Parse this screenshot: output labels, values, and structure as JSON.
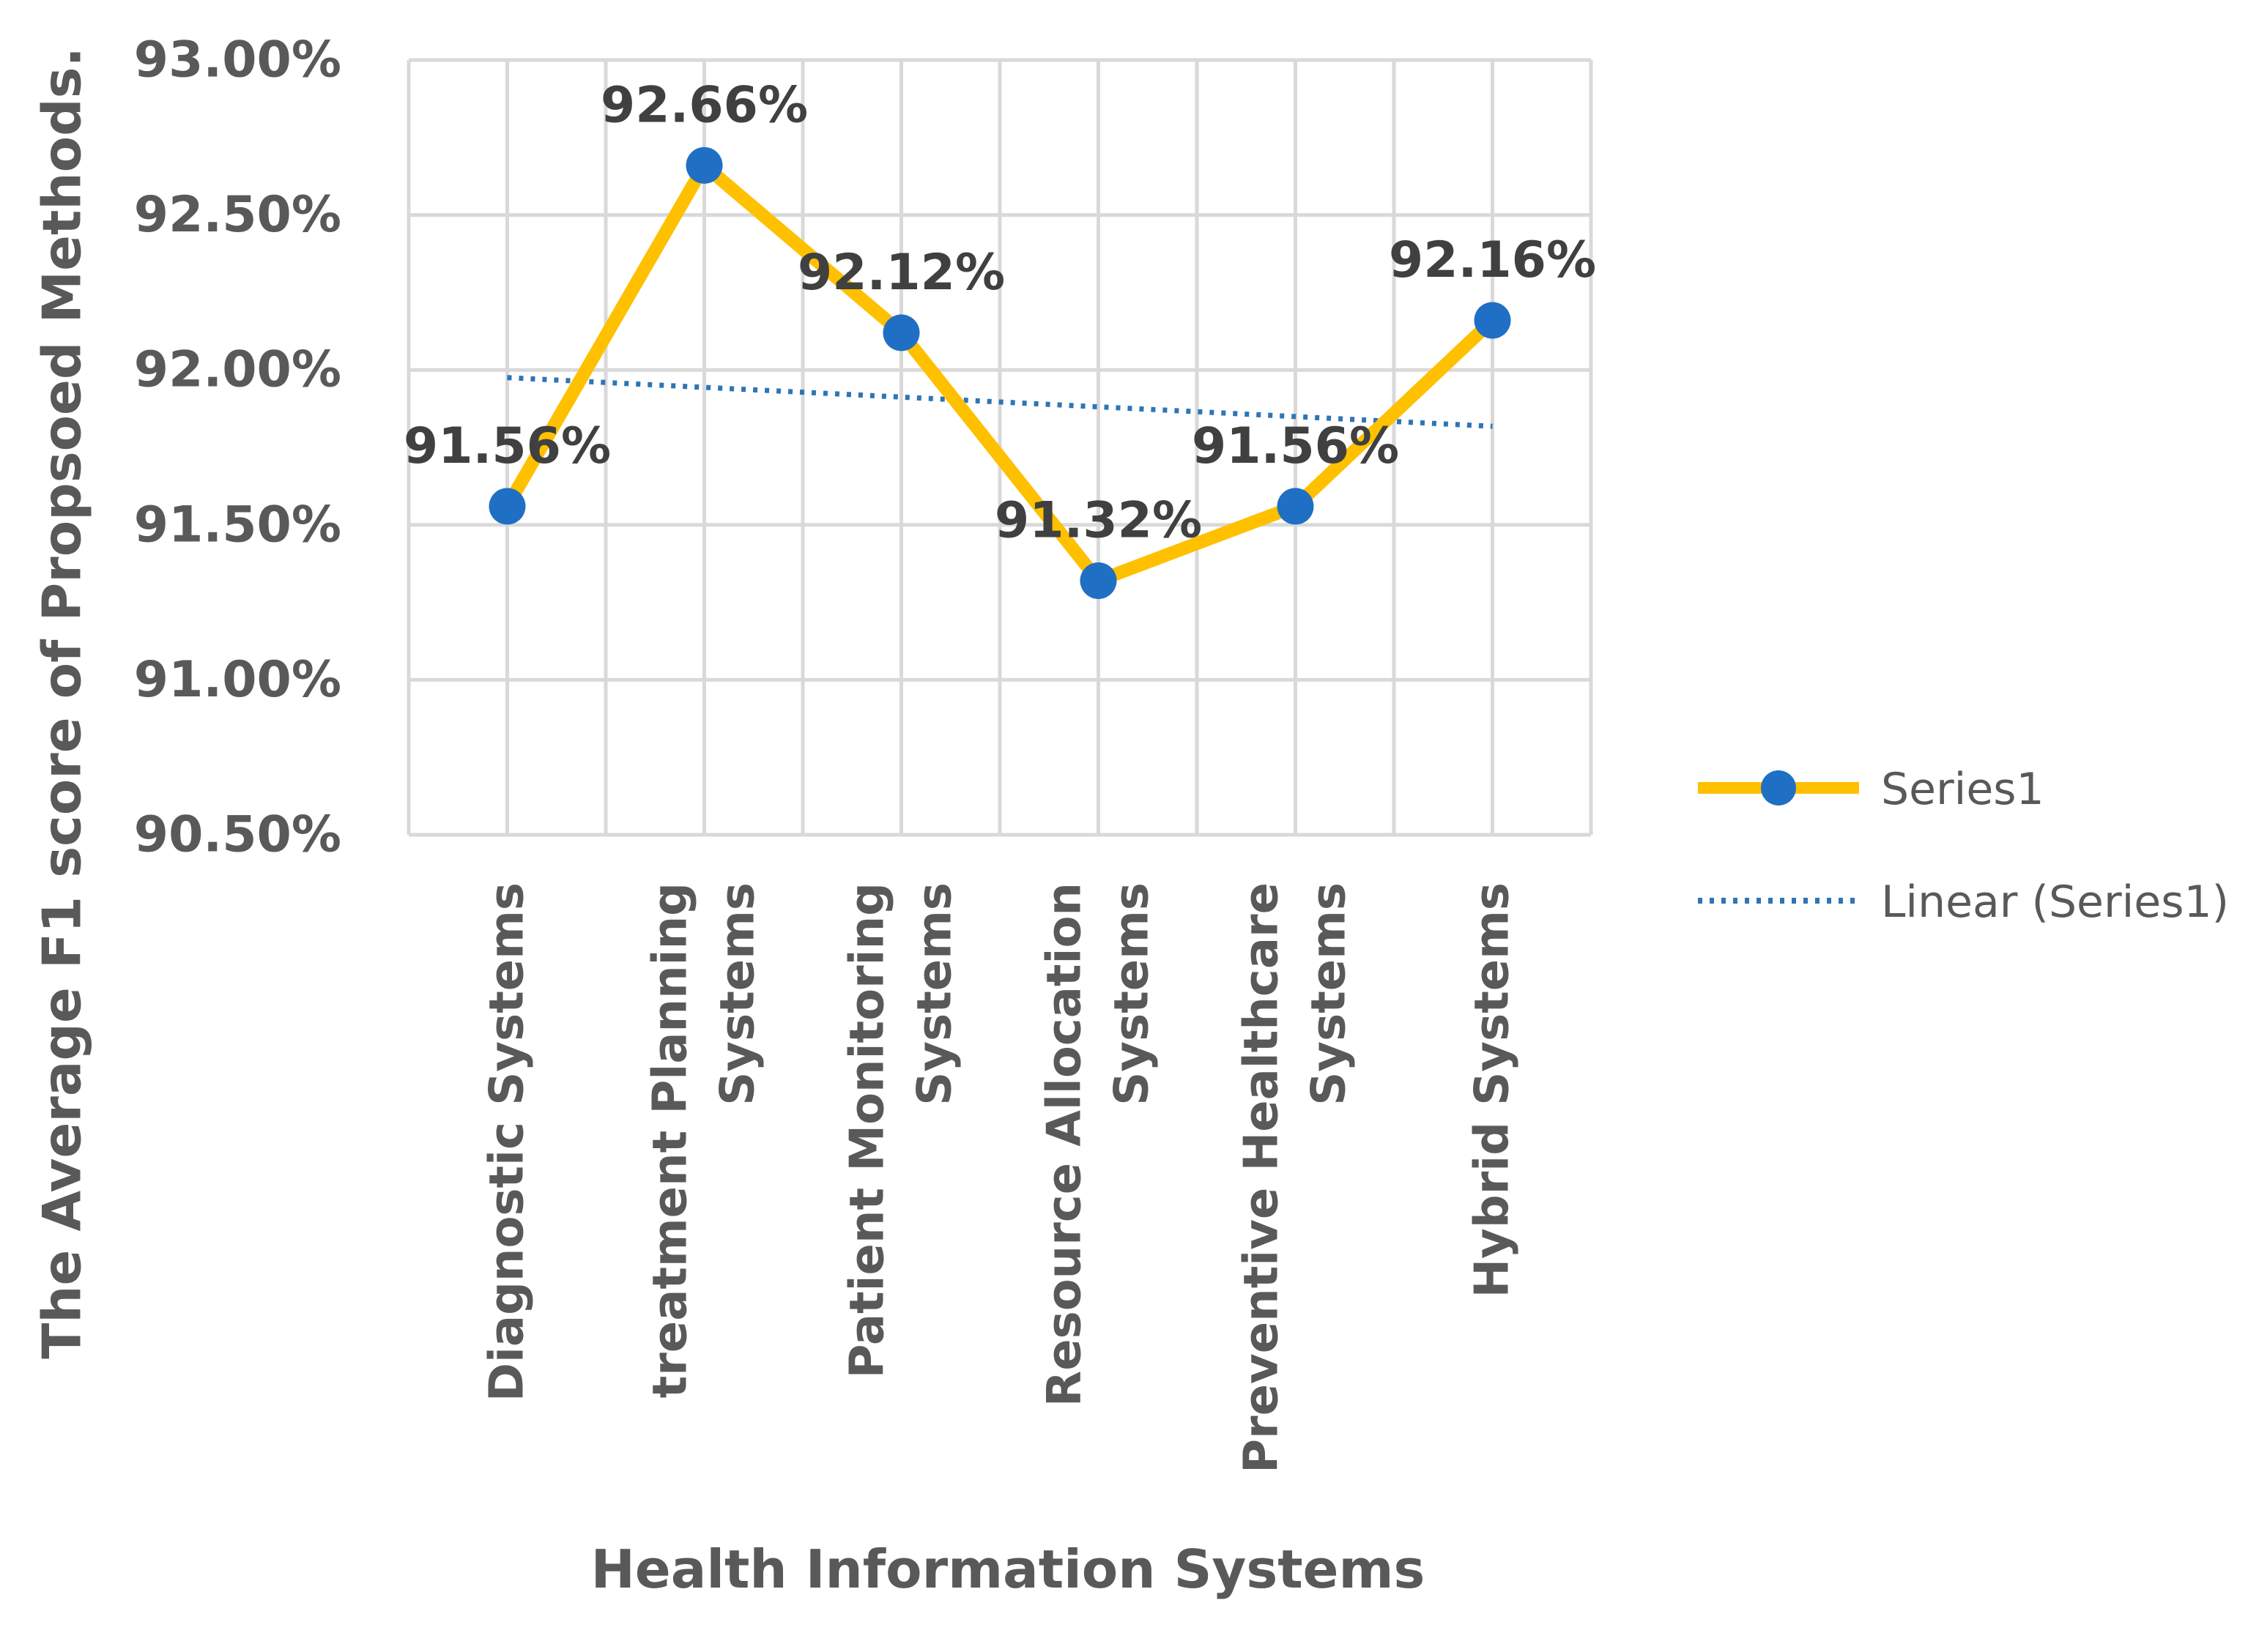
{
  "chart_data": {
    "type": "line",
    "title": "",
    "xlabel": "Health Information Systems",
    "ylabel": "The Average F1 score of Propsoed Methods.",
    "categories": [
      [
        "Diagnostic Systems"
      ],
      [
        "treatment Planning",
        "Systems"
      ],
      [
        "Patient Monitoring",
        "Systems"
      ],
      [
        "Resource Allocation",
        "Systems"
      ],
      [
        "Preventive Healthcare",
        "Systems"
      ],
      [
        "Hybrid Systems"
      ]
    ],
    "series": [
      {
        "name": "Series1",
        "values": [
          91.56,
          92.66,
          92.12,
          91.32,
          91.56,
          92.16
        ],
        "labels": [
          "91.56%",
          "92.66%",
          "92.12%",
          "91.32%",
          "91.56%",
          "92.16%"
        ],
        "line_color": "#FFC000",
        "marker_color": "#1F6FC5"
      }
    ],
    "trendline": {
      "name": "Linear (Series1)",
      "type": "linear",
      "of_series": "Series1",
      "color": "#2E75B6"
    },
    "ylim": [
      90.5,
      93.0
    ],
    "yticks": [
      90.5,
      91.0,
      91.5,
      92.0,
      92.5,
      93.0
    ],
    "ytick_labels": [
      "90.50%",
      "91.00%",
      "91.50%",
      "92.00%",
      "92.50%",
      "93.00%"
    ],
    "grid": true,
    "legend": {
      "position": "right",
      "entries": [
        "Series1",
        "Linear (Series1)"
      ]
    }
  }
}
